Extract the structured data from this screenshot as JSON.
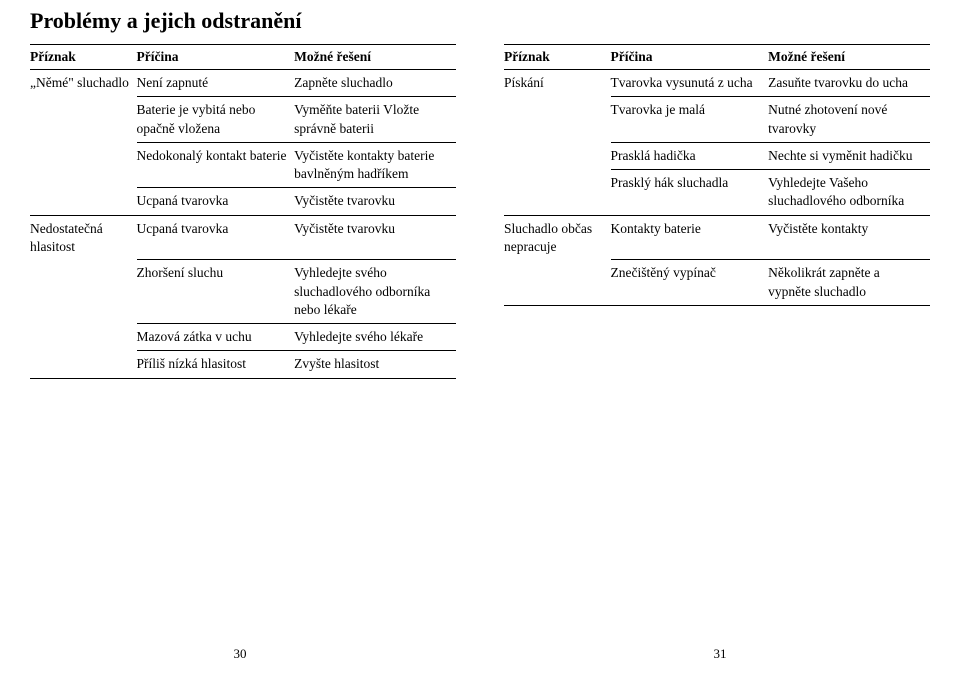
{
  "heading": "Problémy a jejich odstranění",
  "headers": {
    "c0": "Příznak",
    "c1": "Příčina",
    "c2": "Možné řešení"
  },
  "left": [
    {
      "c0": "„Němé\" sluchadlo",
      "c1": "Není zapnuté",
      "c2": "Zapněte sluchadlo",
      "groupEnd": false
    },
    {
      "c0": "",
      "c1": "Baterie je vybitá nebo opačně vložena",
      "c2": "Vyměňte baterii Vložte správně baterii",
      "groupEnd": false
    },
    {
      "c0": "",
      "c1": "Nedokonalý kontakt baterie",
      "c2": "Vyčistěte kontakty baterie bavlněným hadříkem",
      "groupEnd": false
    },
    {
      "c0": "",
      "c1": "Ucpaná tvarovka",
      "c2": "Vyčistěte tvarovku",
      "groupEnd": true
    },
    {
      "c0": "Nedostatečná hlasitost",
      "c1": "Ucpaná tvarovka",
      "c2": "Vyčistěte tvarovku",
      "groupEnd": false
    },
    {
      "c0": "",
      "c1": "Zhoršení sluchu",
      "c2": "Vyhledejte svého sluchadlového odborníka nebo lékaře",
      "groupEnd": false
    },
    {
      "c0": "",
      "c1": "Mazová zátka v uchu",
      "c2": "Vyhledejte svého lékaře",
      "groupEnd": false
    },
    {
      "c0": "",
      "c1": "Příliš nízká hlasitost",
      "c2": "Zvyšte hlasitost",
      "groupEnd": true,
      "last": true
    }
  ],
  "right": [
    {
      "c0": "Pískání",
      "c1": "Tvarovka vysunutá z ucha",
      "c2": "Zasuňte tvarovku do ucha",
      "groupEnd": false
    },
    {
      "c0": "",
      "c1": "Tvarovka je malá",
      "c2": "Nutné zhotovení nové tvarovky",
      "groupEnd": false
    },
    {
      "c0": "",
      "c1": "Prasklá hadička",
      "c2": "Nechte si vyměnit hadičku",
      "groupEnd": false
    },
    {
      "c0": "",
      "c1": "Prasklý hák sluchadla",
      "c2": "Vyhledejte Vašeho sluchadlového odborníka",
      "groupEnd": true
    },
    {
      "c0": "Sluchadlo občas nepracuje",
      "c1": "Kontakty baterie",
      "c2": "Vyčistěte kontakty",
      "groupEnd": false
    },
    {
      "c0": "",
      "c1": "Znečištěný vypínač",
      "c2": "Několikrát zapněte a vypněte sluchadlo",
      "groupEnd": true,
      "last": true
    }
  ],
  "pageLeft": "30",
  "pageRight": "31"
}
